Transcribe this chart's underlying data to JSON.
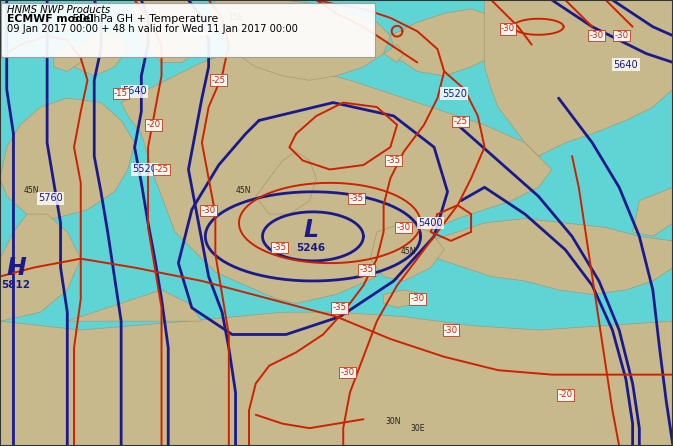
{
  "title_line1": "HNMS NWP Products",
  "title_line2_bold": "ECMWF model",
  "title_line2_rest": " 500hPa GH + Temperature",
  "title_line3": "09 Jan 2017 00:00 + 48 h valid for Wed 11 Jan 2017 00:00",
  "ocean_color": "#5FD4D4",
  "land_color": "#C8B98C",
  "land_edge_color": "#A09070",
  "gh_color": "#1A1A8C",
  "temp_color": "#CC2200",
  "gh_lw": 2.0,
  "temp_lw": 1.4,
  "figsize": [
    6.73,
    4.46
  ],
  "dpi": 100
}
